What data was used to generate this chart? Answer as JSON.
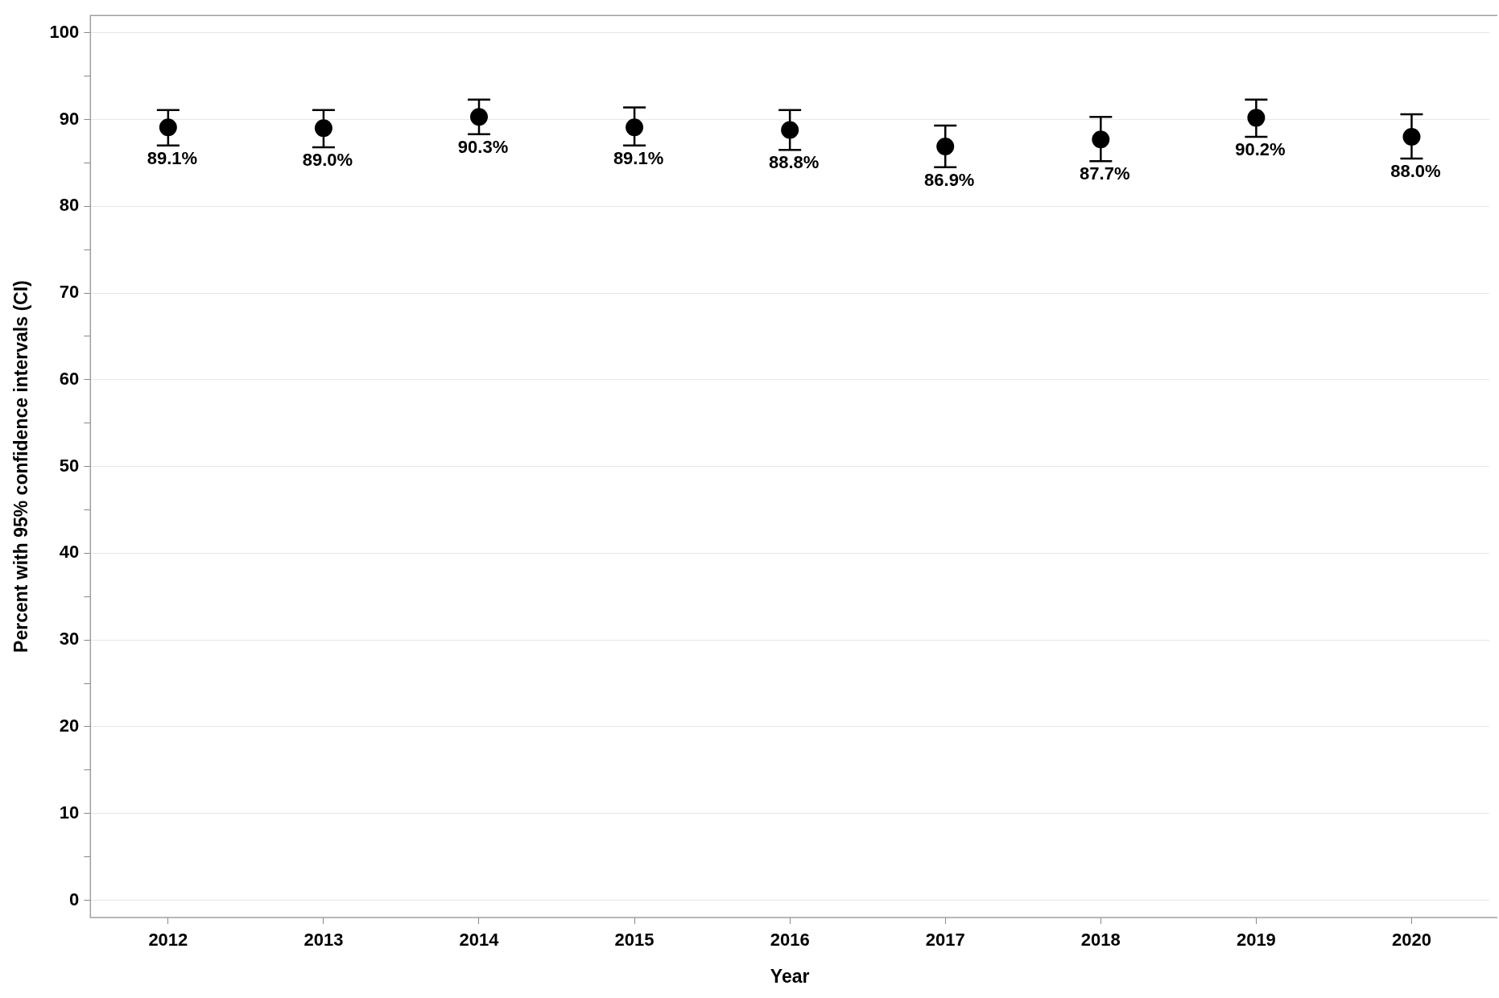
{
  "chart_data": {
    "type": "scatter",
    "xlabel": "Year",
    "ylabel": "Percent with 95% confidence intervals (CI)",
    "categories": [
      "2012",
      "2013",
      "2014",
      "2015",
      "2016",
      "2017",
      "2018",
      "2019",
      "2020"
    ],
    "values": [
      89.1,
      89.0,
      90.3,
      89.1,
      88.8,
      86.9,
      87.7,
      90.2,
      88.0
    ],
    "errors": [
      [
        87.0,
        91.1
      ],
      [
        86.8,
        91.1
      ],
      [
        88.3,
        92.3
      ],
      [
        87.0,
        91.4
      ],
      [
        86.5,
        91.1
      ],
      [
        84.5,
        89.3
      ],
      [
        85.2,
        90.3
      ],
      [
        88.0,
        92.3
      ],
      [
        85.5,
        90.6
      ]
    ],
    "value_labels": [
      "89.1%",
      "89.0%",
      "90.3%",
      "89.1%",
      "88.8%",
      "86.9%",
      "87.7%",
      "90.2%",
      "88.0%"
    ],
    "color": "#000000",
    "marker": "circle",
    "ylim": [
      -2,
      102
    ],
    "yticks": [
      0,
      {
        "value": 5,
        "label": null
      },
      10,
      {
        "value": 15,
        "label": null
      },
      20,
      {
        "value": 25,
        "label": null
      },
      30,
      {
        "value": 35,
        "label": null
      },
      40,
      {
        "value": 45,
        "label": null
      },
      50,
      {
        "value": 55,
        "label": null
      },
      60,
      {
        "value": 65,
        "label": null
      },
      70,
      {
        "value": 75,
        "label": null
      },
      80,
      {
        "value": 85,
        "label": null
      },
      90,
      {
        "value": 95,
        "label": null
      },
      100
    ],
    "grid": "y",
    "legend": false
  }
}
